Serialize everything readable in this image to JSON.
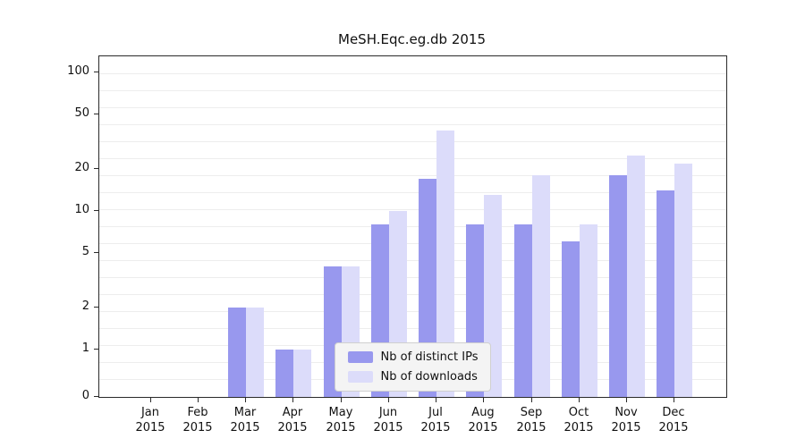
{
  "chart_data": {
    "type": "bar",
    "title": "MeSH.Eqc.eg.db 2015",
    "year": "2015",
    "categories": [
      "Jan",
      "Feb",
      "Mar",
      "Apr",
      "May",
      "Jun",
      "Jul",
      "Aug",
      "Sep",
      "Oct",
      "Nov",
      "Dec"
    ],
    "series": [
      {
        "key": "distinct-ips",
        "name": "Nb of distinct IPs",
        "color": "#9898ee",
        "values": [
          0,
          0,
          2,
          1,
          4,
          8,
          17,
          8,
          8,
          6,
          18,
          14
        ]
      },
      {
        "key": "downloads",
        "name": "Nb of downloads",
        "color": "#dcdcfa",
        "values": [
          0,
          0,
          2,
          1,
          4,
          10,
          38,
          13,
          18,
          8,
          25,
          22
        ]
      }
    ],
    "y_ticks": [
      0,
      1,
      2,
      5,
      10,
      20,
      50,
      100
    ],
    "y_scale": "log",
    "ylim": [
      0,
      100
    ],
    "grid": true,
    "legend_position": "bottom-center"
  }
}
